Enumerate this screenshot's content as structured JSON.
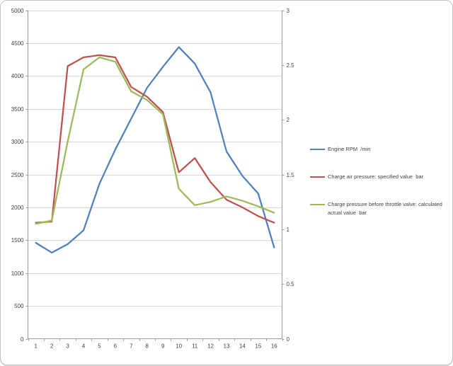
{
  "chart_data": {
    "type": "line",
    "title": "",
    "xlabel": "",
    "ylabel_left": "",
    "ylabel_right": "",
    "categories": [
      1,
      2,
      3,
      4,
      5,
      6,
      7,
      8,
      9,
      10,
      11,
      12,
      13,
      14,
      15,
      16
    ],
    "series": [
      {
        "name": "Engine RPM  /min",
        "axis": "left",
        "color": "#4F81BD",
        "values": [
          1460,
          1310,
          1440,
          1650,
          2360,
          2880,
          3350,
          3820,
          4140,
          4440,
          4190,
          3750,
          2850,
          2480,
          2210,
          1390
        ]
      },
      {
        "name": "Charge air pressure: specified value  bar",
        "axis": "right",
        "color": "#C0504D",
        "values": [
          1.06,
          1.07,
          2.49,
          2.57,
          2.59,
          2.57,
          2.3,
          2.21,
          2.07,
          1.52,
          1.65,
          1.43,
          1.27,
          1.2,
          1.12,
          1.06
        ]
      },
      {
        "name": "Charge pressure before throttle valve: calculated actual value  bar",
        "axis": "right",
        "color": "#9BBB59",
        "values": [
          1.05,
          1.08,
          1.8,
          2.46,
          2.57,
          2.53,
          2.26,
          2.18,
          2.05,
          1.37,
          1.22,
          1.25,
          1.3,
          1.26,
          1.21,
          1.15
        ]
      }
    ],
    "left_axis": {
      "min": 0,
      "max": 5000,
      "step": 500,
      "tick_labels": [
        "5000",
        "4500",
        "4000",
        "3500",
        "3000",
        "2500",
        "2000",
        "1500",
        "1000",
        "500",
        "0"
      ]
    },
    "right_axis": {
      "min": 0,
      "max": 3,
      "step": 0.5,
      "tick_labels": [
        "3",
        "2.5",
        "2",
        "1.5",
        "1",
        "0.5",
        "0"
      ]
    },
    "x_tick_labels": [
      "1",
      "2",
      "3",
      "4",
      "5",
      "6",
      "7",
      "8",
      "9",
      "10",
      "11",
      "12",
      "13",
      "14",
      "15",
      "16"
    ],
    "grid": true,
    "legend_position": "right",
    "colors": {
      "gridline": "#D9D9D9",
      "axis_line": "#9A9A9A",
      "tick_label": "#3F3F3F"
    }
  }
}
